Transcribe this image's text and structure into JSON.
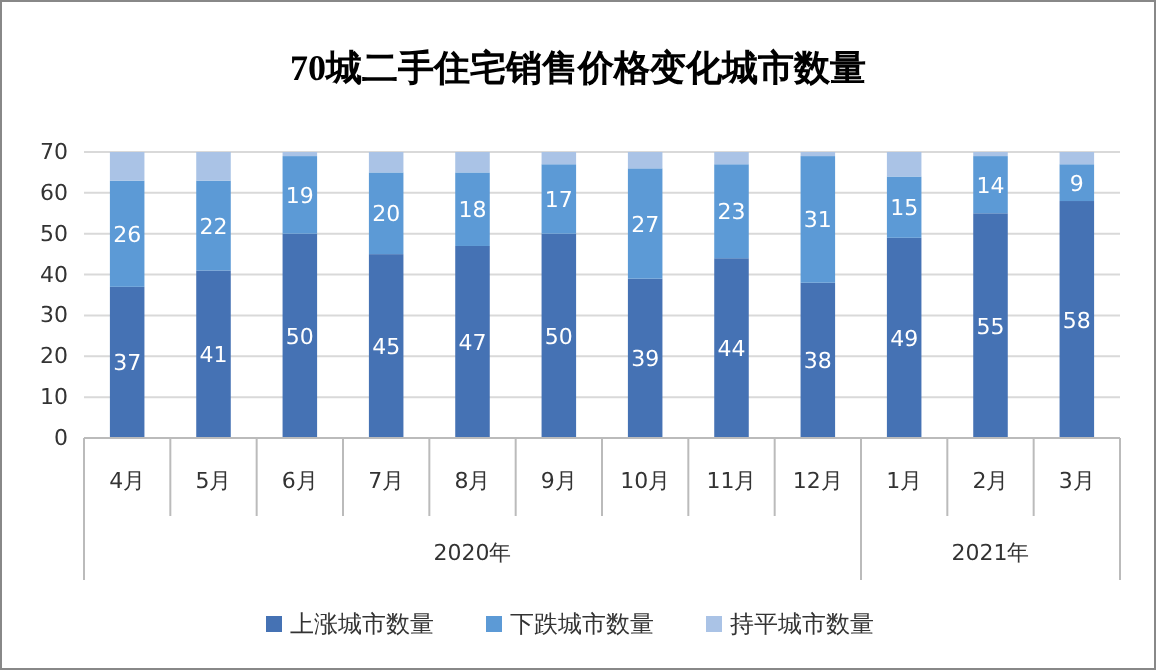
{
  "chart_data": {
    "type": "bar",
    "title": "70城二手住宅销售价格变化城市数量",
    "stacked": true,
    "grid": "y",
    "legend": "bottom",
    "categories": [
      "4月",
      "5月",
      "6月",
      "7月",
      "8月",
      "9月",
      "10月",
      "11月",
      "12月",
      "1月",
      "2月",
      "3月"
    ],
    "ylim": [
      0,
      70
    ],
    "yticks": [
      0,
      10,
      20,
      30,
      40,
      50,
      60,
      70
    ],
    "series": [
      {
        "name": "上涨城市数量",
        "color": "#4572b4",
        "values": [
          37,
          41,
          50,
          45,
          47,
          50,
          39,
          44,
          38,
          49,
          55,
          58
        ],
        "value_labels": [
          "37",
          "41",
          "50",
          "45",
          "47",
          "50",
          "39",
          "44",
          "38",
          "49",
          "55",
          "58"
        ]
      },
      {
        "name": "下跌城市数量",
        "color": "#5c9ad6",
        "values": [
          26,
          22,
          19,
          20,
          18,
          17,
          27,
          23,
          31,
          15,
          14,
          9
        ],
        "value_labels": [
          "26",
          "22",
          "19",
          "20",
          "18",
          "17",
          "27",
          "23",
          "31",
          "15",
          "14",
          "9"
        ]
      },
      {
        "name": "持平城市数量",
        "color": "#aac3e6",
        "values": [
          7,
          7,
          1,
          5,
          5,
          3,
          4,
          3,
          1,
          6,
          1,
          3
        ]
      }
    ],
    "annotations": [
      "2020年",
      "2021年"
    ]
  }
}
